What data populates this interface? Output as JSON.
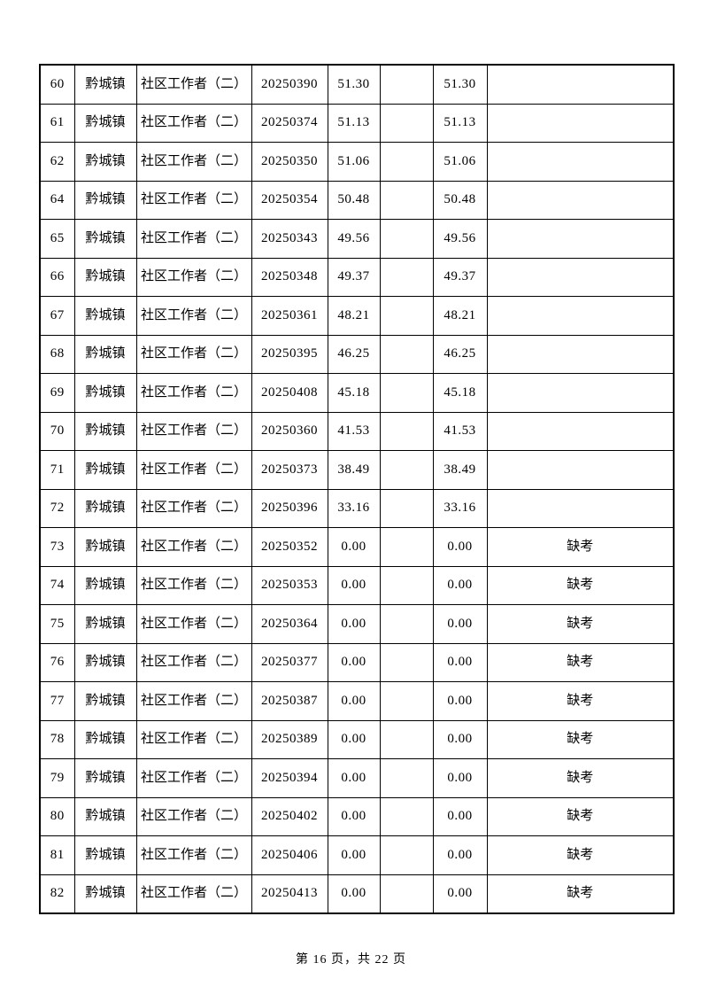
{
  "table": {
    "columns": [
      {
        "key": "no"
      },
      {
        "key": "town"
      },
      {
        "key": "position"
      },
      {
        "key": "code"
      },
      {
        "key": "score1"
      },
      {
        "key": "blank"
      },
      {
        "key": "score2"
      },
      {
        "key": "remark"
      }
    ],
    "rows": [
      {
        "no": "60",
        "town": "黔城镇",
        "position": "社区工作者（二）",
        "code": "20250390",
        "score1": "51.30",
        "blank": "",
        "score2": "51.30",
        "remark": ""
      },
      {
        "no": "61",
        "town": "黔城镇",
        "position": "社区工作者（二）",
        "code": "20250374",
        "score1": "51.13",
        "blank": "",
        "score2": "51.13",
        "remark": ""
      },
      {
        "no": "62",
        "town": "黔城镇",
        "position": "社区工作者（二）",
        "code": "20250350",
        "score1": "51.06",
        "blank": "",
        "score2": "51.06",
        "remark": ""
      },
      {
        "no": "64",
        "town": "黔城镇",
        "position": "社区工作者（二）",
        "code": "20250354",
        "score1": "50.48",
        "blank": "",
        "score2": "50.48",
        "remark": ""
      },
      {
        "no": "65",
        "town": "黔城镇",
        "position": "社区工作者（二）",
        "code": "20250343",
        "score1": "49.56",
        "blank": "",
        "score2": "49.56",
        "remark": ""
      },
      {
        "no": "66",
        "town": "黔城镇",
        "position": "社区工作者（二）",
        "code": "20250348",
        "score1": "49.37",
        "blank": "",
        "score2": "49.37",
        "remark": ""
      },
      {
        "no": "67",
        "town": "黔城镇",
        "position": "社区工作者（二）",
        "code": "20250361",
        "score1": "48.21",
        "blank": "",
        "score2": "48.21",
        "remark": ""
      },
      {
        "no": "68",
        "town": "黔城镇",
        "position": "社区工作者（二）",
        "code": "20250395",
        "score1": "46.25",
        "blank": "",
        "score2": "46.25",
        "remark": ""
      },
      {
        "no": "69",
        "town": "黔城镇",
        "position": "社区工作者（二）",
        "code": "20250408",
        "score1": "45.18",
        "blank": "",
        "score2": "45.18",
        "remark": ""
      },
      {
        "no": "70",
        "town": "黔城镇",
        "position": "社区工作者（二）",
        "code": "20250360",
        "score1": "41.53",
        "blank": "",
        "score2": "41.53",
        "remark": ""
      },
      {
        "no": "71",
        "town": "黔城镇",
        "position": "社区工作者（二）",
        "code": "20250373",
        "score1": "38.49",
        "blank": "",
        "score2": "38.49",
        "remark": ""
      },
      {
        "no": "72",
        "town": "黔城镇",
        "position": "社区工作者（二）",
        "code": "20250396",
        "score1": "33.16",
        "blank": "",
        "score2": "33.16",
        "remark": ""
      },
      {
        "no": "73",
        "town": "黔城镇",
        "position": "社区工作者（二）",
        "code": "20250352",
        "score1": "0.00",
        "blank": "",
        "score2": "0.00",
        "remark": "缺考"
      },
      {
        "no": "74",
        "town": "黔城镇",
        "position": "社区工作者（二）",
        "code": "20250353",
        "score1": "0.00",
        "blank": "",
        "score2": "0.00",
        "remark": "缺考"
      },
      {
        "no": "75",
        "town": "黔城镇",
        "position": "社区工作者（二）",
        "code": "20250364",
        "score1": "0.00",
        "blank": "",
        "score2": "0.00",
        "remark": "缺考"
      },
      {
        "no": "76",
        "town": "黔城镇",
        "position": "社区工作者（二）",
        "code": "20250377",
        "score1": "0.00",
        "blank": "",
        "score2": "0.00",
        "remark": "缺考"
      },
      {
        "no": "77",
        "town": "黔城镇",
        "position": "社区工作者（二）",
        "code": "20250387",
        "score1": "0.00",
        "blank": "",
        "score2": "0.00",
        "remark": "缺考"
      },
      {
        "no": "78",
        "town": "黔城镇",
        "position": "社区工作者（二）",
        "code": "20250389",
        "score1": "0.00",
        "blank": "",
        "score2": "0.00",
        "remark": "缺考"
      },
      {
        "no": "79",
        "town": "黔城镇",
        "position": "社区工作者（二）",
        "code": "20250394",
        "score1": "0.00",
        "blank": "",
        "score2": "0.00",
        "remark": "缺考"
      },
      {
        "no": "80",
        "town": "黔城镇",
        "position": "社区工作者（二）",
        "code": "20250402",
        "score1": "0.00",
        "blank": "",
        "score2": "0.00",
        "remark": "缺考"
      },
      {
        "no": "81",
        "town": "黔城镇",
        "position": "社区工作者（二）",
        "code": "20250406",
        "score1": "0.00",
        "blank": "",
        "score2": "0.00",
        "remark": "缺考"
      },
      {
        "no": "82",
        "town": "黔城镇",
        "position": "社区工作者（二）",
        "code": "20250413",
        "score1": "0.00",
        "blank": "",
        "score2": "0.00",
        "remark": "缺考"
      }
    ]
  },
  "footer": {
    "page_info": "第 16 页，共 22 页"
  }
}
